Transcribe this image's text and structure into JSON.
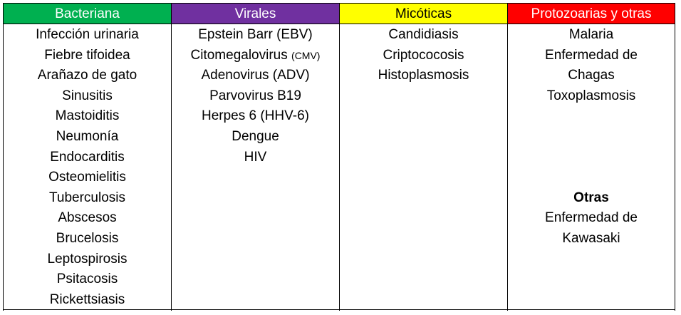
{
  "columns": [
    {
      "header": "Bacteriana",
      "header_bg": "#00b050",
      "header_color": "#ffffff",
      "items": [
        "Infección urinaria",
        "Fiebre tifoidea",
        "Arañazo de gato",
        "Sinusitis",
        "Mastoiditis",
        "Neumonía",
        "Endocarditis",
        "Osteomielitis",
        "Tuberculosis",
        "Abscesos",
        "Brucelosis",
        "Leptospirosis",
        "Psitacosis",
        "Rickettsiasis"
      ]
    },
    {
      "header": "Virales",
      "header_bg": "#7030a0",
      "header_color": "#ffffff",
      "items": [
        "Epstein Barr (EBV)",
        "Citomegalovirus",
        "Adenovirus (ADV)",
        "Parvovirus B19",
        "Herpes 6 (HHV-6)",
        "Dengue",
        "HIV"
      ],
      "cmv_suffix": "(CMV)"
    },
    {
      "header": "Micóticas",
      "header_bg": "#ffff00",
      "header_color": "#000000",
      "items": [
        "Candidiasis",
        "Criptococosis",
        "Histoplasmosis"
      ]
    },
    {
      "header": "Protozoarias y otras",
      "header_bg": "#ff0000",
      "header_color": "#ffffff",
      "items": [
        "Malaria",
        "Enfermedad de",
        "Chagas",
        "Toxoplasmosis"
      ],
      "otras_title": "Otras",
      "otras_items": [
        "Enfermedad de",
        "Kawasaki"
      ]
    }
  ]
}
